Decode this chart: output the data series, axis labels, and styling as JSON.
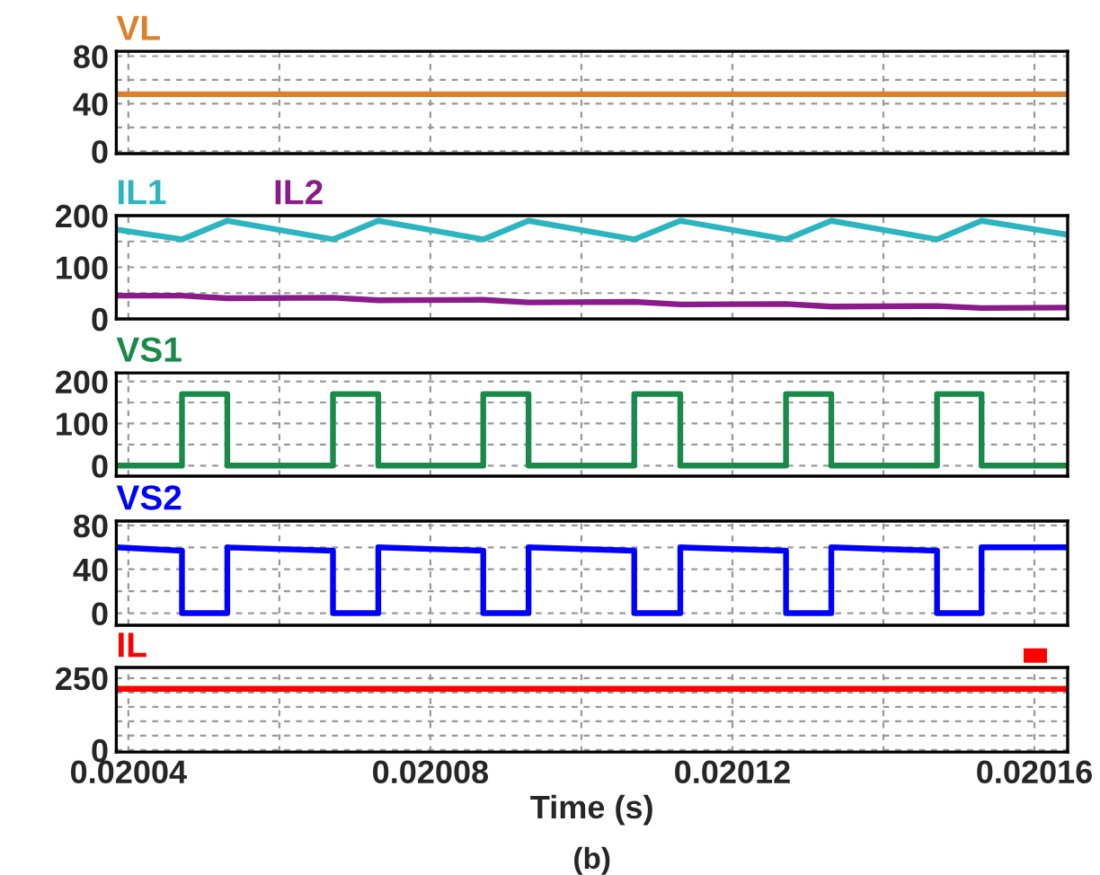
{
  "chart_data": [
    {
      "type": "line",
      "xlim": [
        0.0200384,
        0.0201644
      ],
      "xticks": [
        {
          "value": 0.02004,
          "label": null
        },
        {
          "value": 0.02006,
          "label": null
        },
        {
          "value": 0.02008,
          "label": null
        },
        {
          "value": 0.0201,
          "label": null
        },
        {
          "value": 0.02012,
          "label": null
        },
        {
          "value": 0.02014,
          "label": null
        },
        {
          "value": 0.02016,
          "label": null
        }
      ],
      "ylim": [
        -2,
        84
      ],
      "yticks": [
        0,
        {
          "value": 20,
          "label": null
        },
        40,
        {
          "value": 60,
          "label": null
        },
        80
      ],
      "grid": true,
      "tick_labels": "y",
      "series": [
        {
          "name": "VL",
          "color": "#d9822b",
          "x": [
            0.0200384,
            0.0201644
          ],
          "values": [
            48,
            48
          ]
        }
      ]
    },
    {
      "type": "line",
      "xlim": [
        0.0200384,
        0.0201644
      ],
      "xticks": [
        {
          "value": 0.02004,
          "label": null
        },
        {
          "value": 0.02006,
          "label": null
        },
        {
          "value": 0.02008,
          "label": null
        },
        {
          "value": 0.0201,
          "label": null
        },
        {
          "value": 0.02012,
          "label": null
        },
        {
          "value": 0.02014,
          "label": null
        },
        {
          "value": 0.02016,
          "label": null
        }
      ],
      "ylim": [
        0,
        200
      ],
      "yticks": [
        0,
        {
          "value": 50,
          "label": null
        },
        100,
        {
          "value": 150,
          "label": null
        },
        200
      ],
      "grid": true,
      "tick_labels": "y",
      "series": [
        {
          "name": "IL1",
          "color": "#2ab5c0",
          "x": [
            0.0200384,
            0.0200471,
            0.0200531,
            0.0200671,
            0.0200731,
            0.020087,
            0.020093,
            0.020107,
            0.0201131,
            0.0201271,
            0.0201331,
            0.0201471,
            0.020153,
            0.0201644
          ],
          "values": [
            173,
            154,
            190,
            154,
            190,
            154,
            190,
            154,
            190,
            154,
            190,
            154,
            190,
            163
          ]
        },
        {
          "name": "IL2",
          "color": "#8b1a8b",
          "x": [
            0.0200384,
            0.0200471,
            0.0200531,
            0.0200671,
            0.0200731,
            0.020087,
            0.020093,
            0.020107,
            0.0201131,
            0.0201271,
            0.0201331,
            0.0201471,
            0.020153,
            0.0201644
          ],
          "values": [
            45,
            45,
            40,
            41,
            36,
            37,
            32,
            33,
            28,
            29,
            24,
            25,
            21,
            22
          ]
        }
      ]
    },
    {
      "type": "line",
      "xlim": [
        0.0200384,
        0.0201644
      ],
      "xticks": [
        {
          "value": 0.02004,
          "label": null
        },
        {
          "value": 0.02006,
          "label": null
        },
        {
          "value": 0.02008,
          "label": null
        },
        {
          "value": 0.0201,
          "label": null
        },
        {
          "value": 0.02012,
          "label": null
        },
        {
          "value": 0.02014,
          "label": null
        },
        {
          "value": 0.02016,
          "label": null
        }
      ],
      "ylim": [
        -25,
        220
      ],
      "yticks": [
        0,
        {
          "value": 50,
          "label": null
        },
        100,
        {
          "value": 150,
          "label": null
        },
        200
      ],
      "grid": true,
      "tick_labels": "y",
      "series": [
        {
          "name": "VS1",
          "color": "#1a8a4a",
          "x": [
            0.0200384,
            0.0200471,
            0.0200471,
            0.0200531,
            0.0200531,
            0.0200671,
            0.0200671,
            0.0200731,
            0.0200731,
            0.020087,
            0.020087,
            0.020093,
            0.020093,
            0.020107,
            0.020107,
            0.0201131,
            0.0201131,
            0.0201271,
            0.0201271,
            0.0201331,
            0.0201331,
            0.0201471,
            0.0201471,
            0.020153,
            0.020153,
            0.0201644
          ],
          "values": [
            0,
            0,
            170,
            170,
            0,
            0,
            170,
            170,
            0,
            0,
            170,
            170,
            0,
            0,
            170,
            170,
            0,
            0,
            170,
            170,
            0,
            0,
            170,
            170,
            0,
            0
          ]
        }
      ]
    },
    {
      "type": "line",
      "xlim": [
        0.0200384,
        0.0201644
      ],
      "xticks": [
        {
          "value": 0.02004,
          "label": null
        },
        {
          "value": 0.02006,
          "label": null
        },
        {
          "value": 0.02008,
          "label": null
        },
        {
          "value": 0.0201,
          "label": null
        },
        {
          "value": 0.02012,
          "label": null
        },
        {
          "value": 0.02014,
          "label": null
        },
        {
          "value": 0.02016,
          "label": null
        }
      ],
      "ylim": [
        -11,
        84
      ],
      "yticks": [
        0,
        {
          "value": 20,
          "label": null
        },
        40,
        {
          "value": 60,
          "label": null
        },
        80
      ],
      "grid": true,
      "tick_labels": "y",
      "series": [
        {
          "name": "VS2",
          "color": "#0000ff",
          "x": [
            0.0200384,
            0.0200471,
            0.0200471,
            0.0200531,
            0.0200531,
            0.0200671,
            0.0200671,
            0.0200731,
            0.0200731,
            0.020087,
            0.020087,
            0.020093,
            0.020093,
            0.020107,
            0.020107,
            0.0201131,
            0.0201131,
            0.0201271,
            0.0201271,
            0.0201331,
            0.0201331,
            0.0201471,
            0.0201471,
            0.020153,
            0.020153,
            0.0201644
          ],
          "values": [
            60,
            57,
            0,
            0,
            60,
            57,
            0,
            0,
            60,
            57,
            0,
            0,
            60,
            57,
            0,
            0,
            60,
            57,
            0,
            0,
            60,
            57,
            0,
            0,
            60,
            60
          ]
        }
      ]
    },
    {
      "type": "line",
      "xlim": [
        0.0200384,
        0.0201644
      ],
      "xticks": [
        {
          "value": 0.02004,
          "label": "0.02004"
        },
        {
          "value": 0.02006,
          "label": null
        },
        {
          "value": 0.02008,
          "label": "0.02008"
        },
        {
          "value": 0.0201,
          "label": null
        },
        {
          "value": 0.02012,
          "label": "0.02012"
        },
        {
          "value": 0.02014,
          "label": null
        },
        {
          "value": 0.02016,
          "label": "0.02016"
        }
      ],
      "ylim": [
        -7,
        287
      ],
      "yticks": [
        0,
        {
          "value": 50,
          "label": null
        },
        {
          "value": 100,
          "label": null
        },
        {
          "value": 150,
          "label": null
        },
        {
          "value": 200,
          "label": null
        },
        250
      ],
      "grid": true,
      "xlabel": "Time (s)",
      "annotations": [
        "(b)"
      ],
      "series": [
        {
          "name": "IL",
          "color": "#ff0000",
          "x": [
            0.0200384,
            0.0201644
          ],
          "values": [
            213,
            213
          ]
        }
      ]
    }
  ]
}
